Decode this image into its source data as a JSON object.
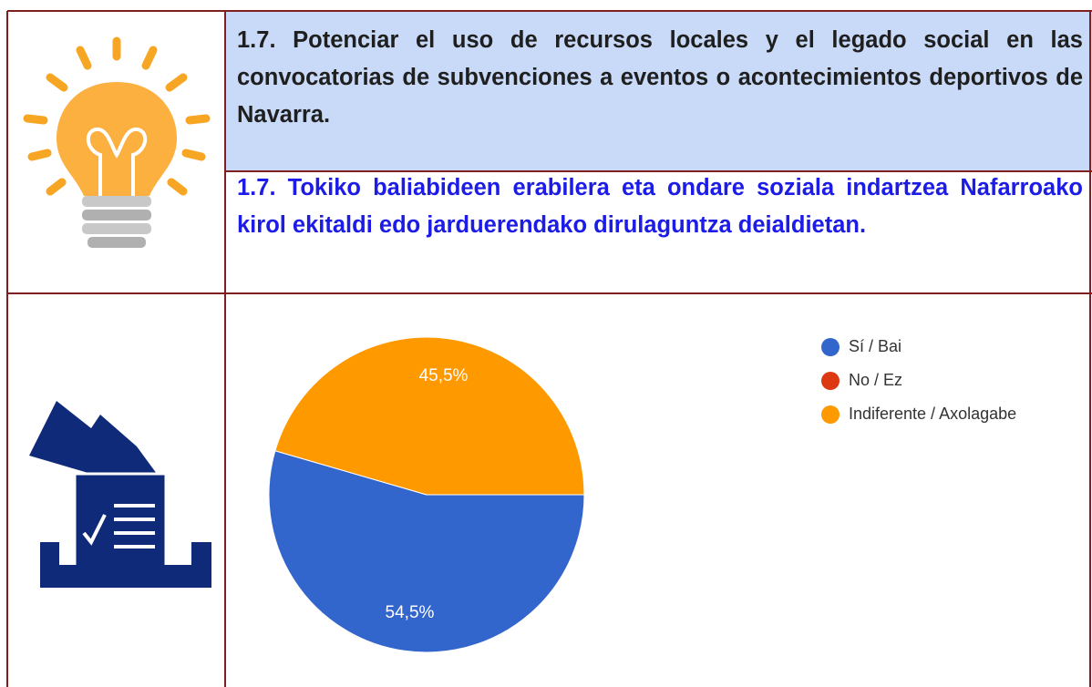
{
  "header": {
    "title_es": "1.7. Potenciar el uso de recursos locales y el legado social en las convocatorias de subvenciones a eventos o acontecimientos deportivos de Navarra.",
    "title_eu": "1.7. Tokiko baliabideen erabilera eta ondare soziala indartzea Nafarroako kirol ekitaldi edo jarduerendako dirulaguntza deialdietan."
  },
  "chart_data": {
    "type": "pie",
    "categories": [
      "Sí / Bai",
      "No / Ez",
      "Indiferente / Axolagabe"
    ],
    "values": [
      54.5,
      0,
      45.5
    ],
    "value_labels": [
      "54,5%",
      null,
      "45,5%"
    ],
    "colors": [
      "#3366cc",
      "#dc3912",
      "#ff9900"
    ]
  }
}
